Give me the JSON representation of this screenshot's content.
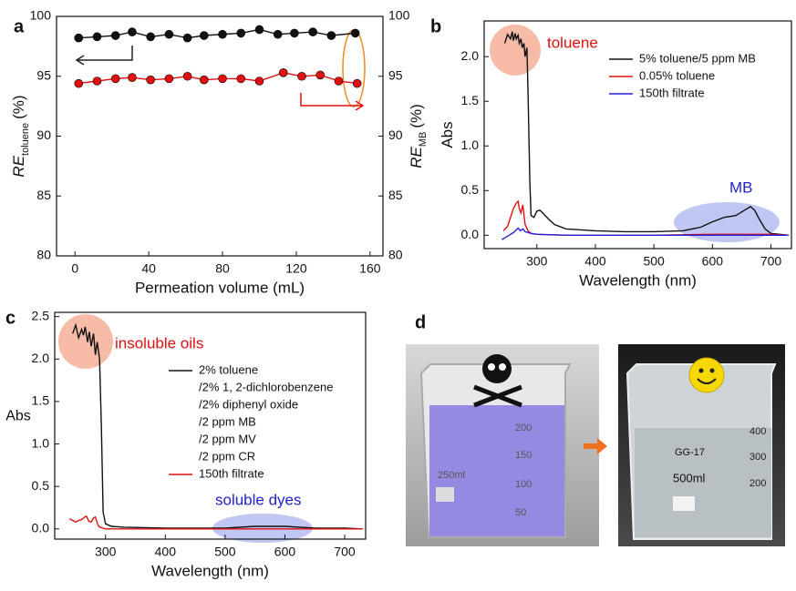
{
  "chart_data": [
    {
      "type": "line",
      "label": "a",
      "xlabel": "Permeation volume (mL)",
      "ylabel": "RE",
      "ylabel_sub": "toluene",
      "ylabel_unit": "(%)",
      "y2label": "RE",
      "y2label_sub": "MB",
      "y2label_unit": "(%)",
      "xlim": [
        -10,
        167
      ],
      "ylim": [
        80,
        100
      ],
      "y2lim": [
        80,
        100
      ],
      "xticks": [
        0,
        40,
        80,
        120,
        160
      ],
      "yticks": [
        80,
        85,
        90,
        95,
        100
      ],
      "y2ticks": [
        80,
        85,
        90,
        95,
        100
      ],
      "markers": true,
      "series": [
        {
          "color": "#111111",
          "x": [
            2,
            12,
            22,
            31,
            41,
            51,
            61,
            70,
            80,
            90,
            100,
            110,
            119,
            129,
            139,
            152
          ],
          "values": [
            98.2,
            98.3,
            98.4,
            98.7,
            98.3,
            98.5,
            98.2,
            98.4,
            98.5,
            98.6,
            98.9,
            98.5,
            98.6,
            98.7,
            98.4,
            98.6
          ]
        },
        {
          "color": "#e01010",
          "axis": "y2",
          "x": [
            2,
            12,
            22,
            31,
            41,
            51,
            61,
            70,
            80,
            90,
            100,
            113,
            123,
            133,
            143,
            153
          ],
          "values": [
            94.4,
            94.6,
            94.8,
            94.9,
            94.7,
            94.8,
            95.0,
            94.7,
            94.8,
            94.8,
            94.6,
            95.3,
            95.0,
            95.1,
            94.6,
            94.4
          ]
        }
      ]
    },
    {
      "type": "line",
      "label": "b",
      "xlabel": "Wavelength (nm)",
      "ylabel": "Abs",
      "xlim": [
        210,
        735
      ],
      "ylim": [
        -0.15,
        2.4
      ],
      "xticks": [
        300,
        400,
        500,
        600,
        700
      ],
      "yticks": [
        {
          "value": 0,
          "label": "0.0"
        },
        0.5,
        {
          "value": 1,
          "label": "1.0"
        },
        1.5,
        {
          "value": 2,
          "label": "2.0"
        }
      ],
      "annotations": [
        {
          "text": "toluene",
          "color": "#e01010"
        },
        {
          "text": "MB",
          "color": "#2222cc"
        }
      ],
      "series": [
        {
          "name": "5% toluene/5 ppm MB",
          "color": "#111111",
          "x": [
            245,
            250,
            255,
            258,
            260,
            263,
            265,
            268,
            270,
            273,
            275,
            278,
            280,
            283,
            285,
            288,
            290,
            295,
            300,
            305,
            310,
            320,
            330,
            350,
            400,
            450,
            500,
            550,
            580,
            600,
            620,
            640,
            655,
            665,
            672,
            680,
            690,
            700,
            715,
            730
          ],
          "values": [
            2.15,
            2.25,
            2.2,
            2.28,
            2.18,
            2.26,
            2.2,
            2.24,
            2.15,
            2.2,
            2.1,
            2.15,
            2.0,
            2.1,
            1.6,
            0.6,
            0.22,
            0.2,
            0.27,
            0.28,
            0.25,
            0.18,
            0.12,
            0.07,
            0.05,
            0.04,
            0.04,
            0.05,
            0.09,
            0.15,
            0.2,
            0.22,
            0.28,
            0.32,
            0.28,
            0.18,
            0.07,
            0.02,
            0.01,
            0.0
          ]
        },
        {
          "name": "0.05% toluene",
          "color": "#e01010",
          "x": [
            243,
            250,
            255,
            260,
            265,
            268,
            270,
            273,
            276,
            280,
            285,
            290,
            300,
            350,
            400,
            500,
            600,
            700,
            730
          ],
          "values": [
            0.05,
            0.1,
            0.2,
            0.3,
            0.36,
            0.38,
            0.3,
            0.25,
            0.34,
            0.12,
            0.05,
            0.02,
            0.01,
            0.0,
            0.0,
            0.0,
            0.01,
            0.01,
            0.0
          ]
        },
        {
          "name": "150th filtrate",
          "color": "#2222dd",
          "x": [
            240,
            250,
            260,
            265,
            268,
            272,
            276,
            280,
            290,
            300,
            350,
            400,
            500,
            600,
            700,
            730
          ],
          "values": [
            -0.05,
            -0.01,
            0.03,
            0.06,
            0.08,
            0.05,
            0.07,
            0.04,
            0.02,
            0.01,
            0.0,
            0.0,
            0.0,
            0.0,
            0.0,
            0.0
          ]
        }
      ]
    },
    {
      "type": "line",
      "label": "c",
      "xlabel": "Wavelength (nm)",
      "ylabel": "Abs",
      "xlim": [
        215,
        735
      ],
      "ylim": [
        -0.12,
        2.55
      ],
      "xticks": [
        300,
        400,
        500,
        600,
        700
      ],
      "yticks": [
        {
          "value": 0,
          "label": "0.0"
        },
        0.5,
        {
          "value": 1,
          "label": "1.0"
        },
        1.5,
        {
          "value": 2,
          "label": "2.0"
        },
        2.5
      ],
      "annotations": [
        {
          "text": "insoluble oils",
          "color": "#e01010"
        },
        {
          "text": "soluble dyes",
          "color": "#2222cc"
        }
      ],
      "legend_extra": [
        "/2% 1, 2-dichlorobenzene",
        "/2% diphenyl oxide",
        "/2 ppm MB",
        "/2 ppm MV",
        "/2 ppm CR"
      ],
      "series": [
        {
          "name": "2% toluene",
          "color": "#111111",
          "x": [
            245,
            250,
            255,
            260,
            263,
            266,
            270,
            273,
            276,
            280,
            283,
            286,
            290,
            293,
            296,
            300,
            310,
            330,
            400,
            500,
            550,
            580,
            600,
            650,
            700,
            730
          ],
          "values": [
            2.3,
            2.4,
            2.25,
            2.35,
            2.28,
            2.38,
            2.2,
            2.32,
            2.15,
            2.3,
            2.05,
            2.2,
            2.0,
            1.2,
            0.2,
            0.06,
            0.03,
            0.02,
            0.01,
            0.01,
            0.03,
            0.03,
            0.03,
            0.01,
            0.01,
            0.0
          ]
        },
        {
          "name": "150th filtrate",
          "color": "#e01010",
          "x": [
            240,
            245,
            250,
            255,
            260,
            265,
            268,
            272,
            276,
            280,
            283,
            287,
            290,
            300,
            400,
            500,
            600,
            700,
            730
          ],
          "values": [
            0.12,
            0.1,
            0.08,
            0.1,
            0.11,
            0.14,
            0.15,
            0.09,
            0.08,
            0.13,
            0.14,
            0.05,
            0.02,
            0.0,
            0.0,
            0.0,
            0.0,
            0.0,
            0.0
          ]
        }
      ]
    }
  ],
  "panel_d": {
    "label": "d",
    "left_texts": [
      "250ml",
      "200",
      "150",
      "100",
      "50"
    ],
    "right_texts": [
      "500ml",
      "GG-17",
      "400",
      "300",
      "200"
    ]
  }
}
